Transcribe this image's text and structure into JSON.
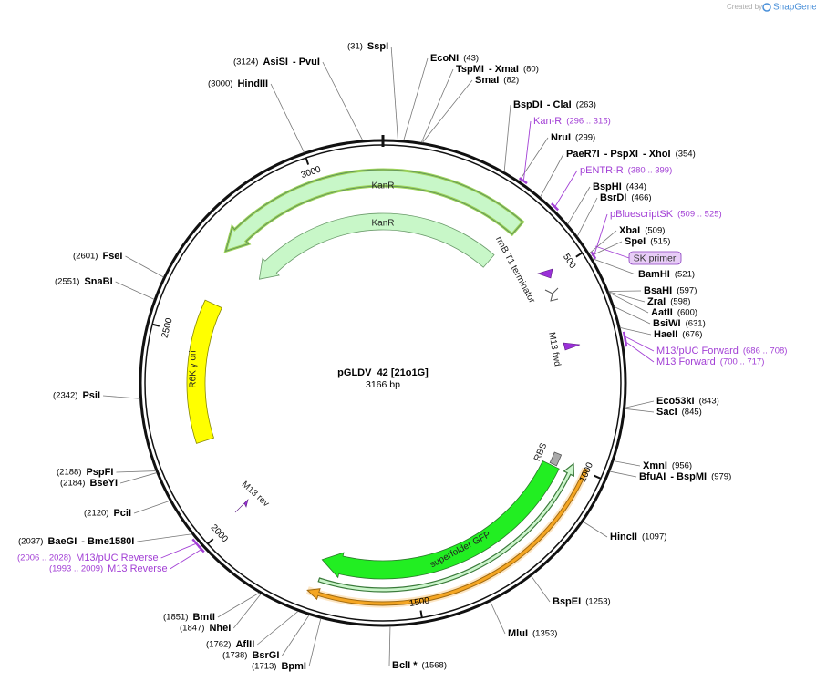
{
  "branding": {
    "created_by": "Created by",
    "logo": "SnapGene"
  },
  "plasmid": {
    "name": "pGLDV_42 [21o1G]",
    "length": "3166 bp"
  },
  "ruler": [
    "500",
    "1000",
    "1500",
    "2000",
    "2500",
    "3000"
  ],
  "features": {
    "kanr_outer": "KanR",
    "kanr_inner": "KanR",
    "terminator": "rrnB T1 terminator",
    "ori": "R6K γ ori",
    "gfp": "superfolder GFP",
    "rbs": "RBS",
    "m13_fwd": "M13 fwd",
    "m13_rev": "M13 rev",
    "sk_primer": "SK primer"
  },
  "sites": [
    {
      "position": "(31)",
      "names": [
        "SspI"
      ]
    },
    {
      "position": "(43)",
      "names": [
        "EcoNI"
      ]
    },
    {
      "position": "(80)",
      "names": [
        "TspMI",
        "- XmaI"
      ]
    },
    {
      "position": "(82)",
      "names": [
        "SmaI"
      ]
    },
    {
      "position": "(263)",
      "names": [
        "BspDI",
        "- ClaI"
      ]
    },
    {
      "position": "(299)",
      "names": [
        "NruI"
      ]
    },
    {
      "position": "(354)",
      "names": [
        "PaeR7I",
        "- PspXI",
        "- XhoI"
      ]
    },
    {
      "position": "(434)",
      "names": [
        "BspHI"
      ]
    },
    {
      "position": "(466)",
      "names": [
        "BsrDI"
      ]
    },
    {
      "position": "(509)",
      "names": [
        "XbaI"
      ]
    },
    {
      "position": "(515)",
      "names": [
        "SpeI"
      ]
    },
    {
      "position": "(521)",
      "names": [
        "BamHI"
      ]
    },
    {
      "position": "(597)",
      "names": [
        "BsaHI"
      ]
    },
    {
      "position": "(598)",
      "names": [
        "ZraI"
      ]
    },
    {
      "position": "(600)",
      "names": [
        "AatII"
      ]
    },
    {
      "position": "(631)",
      "names": [
        "BsiWI"
      ]
    },
    {
      "position": "(676)",
      "names": [
        "HaeII"
      ]
    },
    {
      "position": "(843)",
      "names": [
        "Eco53kI"
      ]
    },
    {
      "position": "(845)",
      "names": [
        "SacI"
      ]
    },
    {
      "position": "(956)",
      "names": [
        "XmnI"
      ]
    },
    {
      "position": "(979)",
      "names": [
        "BfuAI",
        "- BspMI"
      ]
    },
    {
      "position": "(1097)",
      "names": [
        "HincII"
      ]
    },
    {
      "position": "(1253)",
      "names": [
        "BspEI"
      ]
    },
    {
      "position": "(1353)",
      "names": [
        "MluI"
      ]
    },
    {
      "position": "(1568)",
      "names": [
        "BclI *"
      ]
    },
    {
      "position": "(1713)",
      "names": [
        "BpmI"
      ]
    },
    {
      "position": "(1738)",
      "names": [
        "BsrGI"
      ]
    },
    {
      "position": "(1762)",
      "names": [
        "AflII"
      ]
    },
    {
      "position": "(1847)",
      "names": [
        "NheI"
      ]
    },
    {
      "position": "(1851)",
      "names": [
        "BmtI"
      ]
    },
    {
      "position": "(2037)",
      "names": [
        "BaeGI",
        "- Bme1580I"
      ]
    },
    {
      "position": "(2120)",
      "names": [
        "PciI"
      ]
    },
    {
      "position": "(2184)",
      "names": [
        "BseYI"
      ]
    },
    {
      "position": "(2188)",
      "names": [
        "PspFI"
      ]
    },
    {
      "position": "(2342)",
      "names": [
        "PsiI"
      ]
    },
    {
      "position": "(2551)",
      "names": [
        "SnaBI"
      ]
    },
    {
      "position": "(2601)",
      "names": [
        "FseI"
      ]
    },
    {
      "position": "(3000)",
      "names": [
        "HindIII"
      ]
    },
    {
      "position": "(3124)",
      "names": [
        "AsiSI",
        "- PvuI"
      ]
    }
  ],
  "primers": [
    {
      "name": "Kan-R",
      "range": "(296 .. 315)"
    },
    {
      "name": "pENTR-R",
      "range": "(380 .. 399)"
    },
    {
      "name": "pBluescriptSK",
      "range": "(509 .. 525)"
    },
    {
      "name": "M13/pUC Forward",
      "range": "(686 .. 708)"
    },
    {
      "name": "M13 Forward",
      "range": "(700 .. 717)"
    },
    {
      "name": "M13/pUC Reverse",
      "range": "(2006 .. 2028)"
    },
    {
      "name": "M13 Reverse",
      "range": "(1993 .. 2009)"
    }
  ]
}
